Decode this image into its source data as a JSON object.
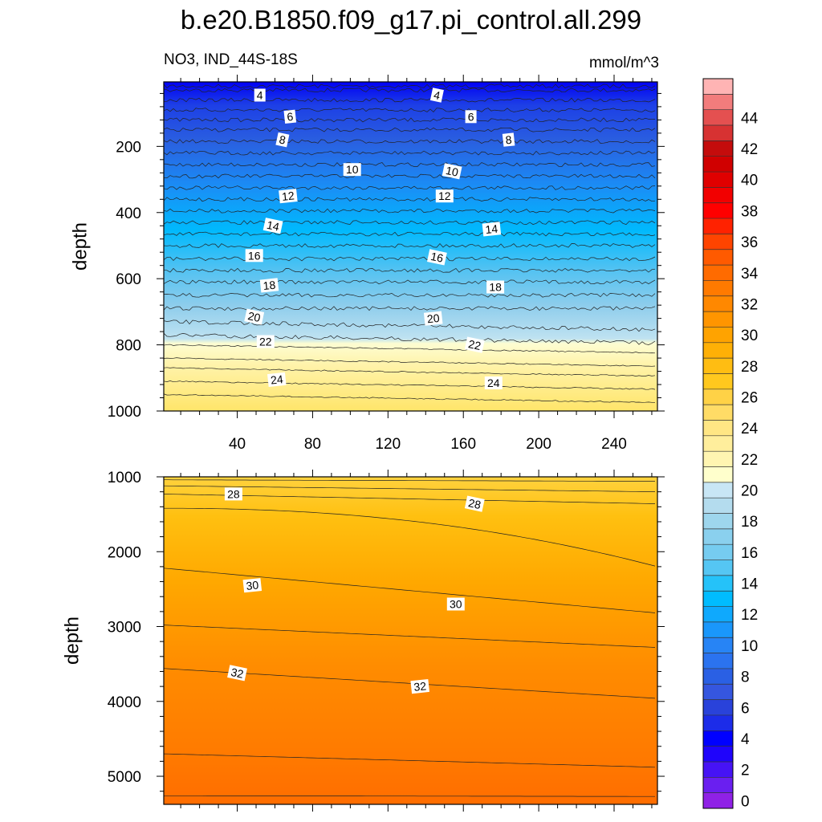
{
  "chart_data": [
    {
      "type": "contour",
      "title": "b.e20.B1850.f09_g17.pi_control.all.299",
      "left_string": "NO3, IND_44S-18S",
      "right_string": "mmol/m^3",
      "xlabel": "",
      "ylabel": "depth",
      "xlim": [
        1,
        263
      ],
      "ylim": [
        1000,
        5
      ],
      "yreversed": true,
      "xticks": [
        40,
        80,
        120,
        160,
        200,
        240
      ],
      "yticks": [
        200,
        400,
        600,
        800,
        1000
      ],
      "contour_levels": [
        4,
        6,
        8,
        10,
        12,
        14,
        16,
        18,
        20,
        22,
        24
      ],
      "contour_labels": [
        {
          "text": "4",
          "x": 52,
          "y": 45
        },
        {
          "text": "4",
          "x": 146,
          "y": 45
        },
        {
          "text": "6",
          "x": 68,
          "y": 110
        },
        {
          "text": "6",
          "x": 164,
          "y": 110
        },
        {
          "text": "8",
          "x": 64,
          "y": 180
        },
        {
          "text": "8",
          "x": 184,
          "y": 180
        },
        {
          "text": "10",
          "x": 101,
          "y": 270
        },
        {
          "text": "10",
          "x": 154,
          "y": 275
        },
        {
          "text": "12",
          "x": 67,
          "y": 350
        },
        {
          "text": "12",
          "x": 150,
          "y": 350
        },
        {
          "text": "14",
          "x": 59,
          "y": 440
        },
        {
          "text": "14",
          "x": 175,
          "y": 450
        },
        {
          "text": "16",
          "x": 49,
          "y": 530
        },
        {
          "text": "16",
          "x": 146,
          "y": 535
        },
        {
          "text": "18",
          "x": 57,
          "y": 620
        },
        {
          "text": "18",
          "x": 177,
          "y": 625
        },
        {
          "text": "20",
          "x": 49,
          "y": 715
        },
        {
          "text": "20",
          "x": 144,
          "y": 720
        },
        {
          "text": "22",
          "x": 55,
          "y": 790
        },
        {
          "text": "22",
          "x": 166,
          "y": 800
        },
        {
          "text": "24",
          "x": 61,
          "y": 905
        },
        {
          "text": "24",
          "x": 176,
          "y": 915
        }
      ]
    },
    {
      "type": "contour",
      "xlabel": "",
      "ylabel": "depth",
      "xlim": [
        1,
        263
      ],
      "ylim": [
        5375,
        1000
      ],
      "yreversed": true,
      "yticks": [
        1000,
        2000,
        3000,
        4000,
        5000
      ],
      "contour_levels": [
        28,
        30,
        32
      ],
      "contour_labels": [
        {
          "text": "28",
          "x": 38,
          "y": 1230
        },
        {
          "text": "28",
          "x": 166,
          "y": 1360
        },
        {
          "text": "30",
          "x": 48,
          "y": 2450
        },
        {
          "text": "30",
          "x": 156,
          "y": 2700
        },
        {
          "text": "32",
          "x": 40,
          "y": 3620
        },
        {
          "text": "32",
          "x": 137,
          "y": 3800
        }
      ]
    }
  ],
  "colorbar": {
    "labels": [
      "0",
      "2",
      "4",
      "6",
      "8",
      "10",
      "12",
      "14",
      "16",
      "18",
      "20",
      "22",
      "24",
      "26",
      "28",
      "30",
      "32",
      "34",
      "36",
      "38",
      "40",
      "42",
      "44"
    ],
    "colors": [
      "#8f21e6",
      "#6a1ff0",
      "#4613f5",
      "#1f04fb",
      "#0000ff",
      "#1c2ce9",
      "#2942da",
      "#3556df",
      "#2a60e4",
      "#2b73ef",
      "#2784f5",
      "#1a97fb",
      "#0fa9fd",
      "#00bcff",
      "#25c2f9",
      "#55c6f3",
      "#76ccf0",
      "#8ad0ee",
      "#9ed6ed",
      "#b4dcee",
      "#c8e6f5",
      "#ffffcc",
      "#fff5b1",
      "#ffee9c",
      "#ffe684",
      "#ffdc66",
      "#ffd246",
      "#ffc81e",
      "#ffbd12",
      "#ffb006",
      "#ffa300",
      "#ff9500",
      "#ff8800",
      "#ff7a00",
      "#ff6b00",
      "#ff5a00",
      "#ff4400",
      "#ff2200",
      "#ff0000",
      "#f20000",
      "#e00000",
      "#d00000",
      "#c40c0c",
      "#d73232",
      "#e45050",
      "#f27c7c",
      "#ffb4b4"
    ]
  }
}
